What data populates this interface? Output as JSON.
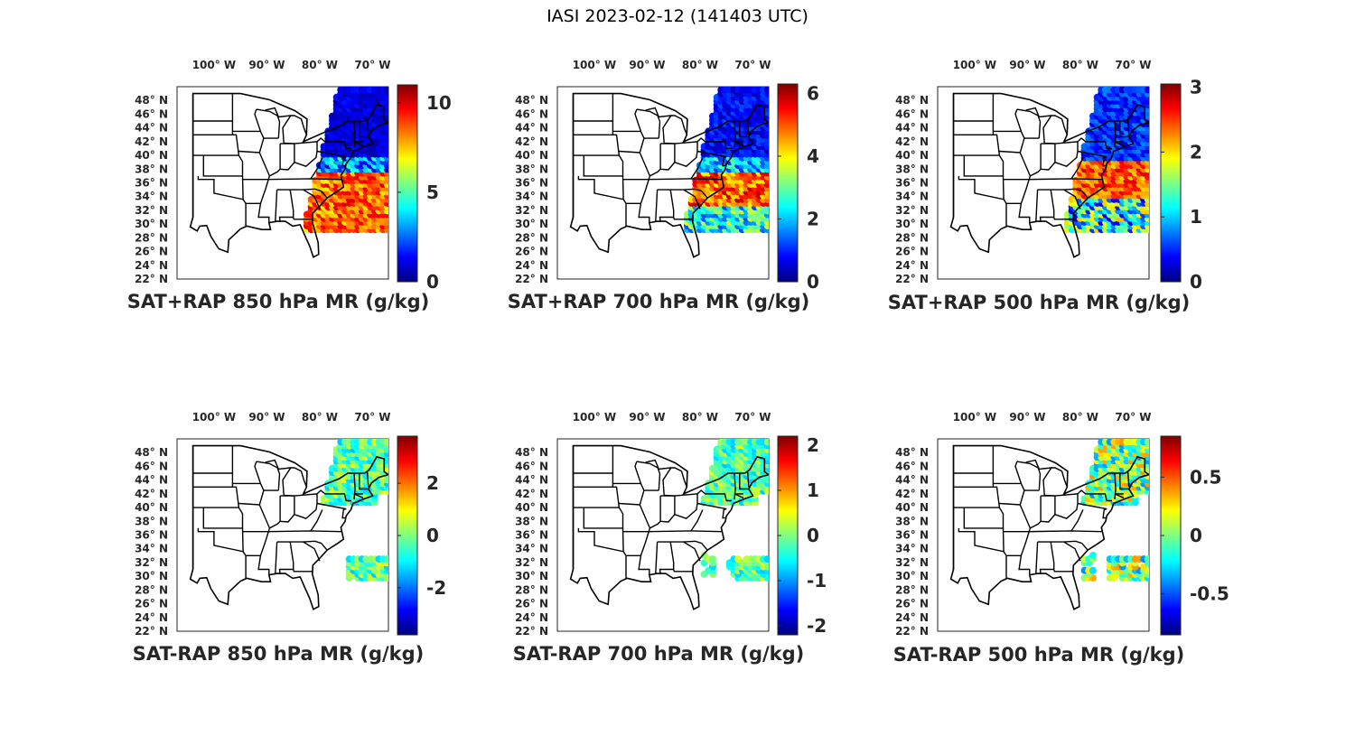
{
  "figure": {
    "title": "IASI 2023-02-12 (141403 UTC)"
  },
  "map_axes": {
    "lon_ticks": [
      {
        "value": -100,
        "label": "100° W"
      },
      {
        "value": -90,
        "label": "90° W"
      },
      {
        "value": -80,
        "label": "80° W"
      },
      {
        "value": -70,
        "label": "70° W"
      }
    ],
    "lat_ticks": [
      {
        "value": 48,
        "label": "48° N"
      },
      {
        "value": 46,
        "label": "46° N"
      },
      {
        "value": 44,
        "label": "44° N"
      },
      {
        "value": 42,
        "label": "42° N"
      },
      {
        "value": 40,
        "label": "40° N"
      },
      {
        "value": 38,
        "label": "38° N"
      },
      {
        "value": 36,
        "label": "36° N"
      },
      {
        "value": 34,
        "label": "34° N"
      },
      {
        "value": 32,
        "label": "32° N"
      },
      {
        "value": 30,
        "label": "30° N"
      },
      {
        "value": 28,
        "label": "28° N"
      },
      {
        "value": 26,
        "label": "26° N"
      },
      {
        "value": 24,
        "label": "24° N"
      },
      {
        "value": 22,
        "label": "22° N"
      }
    ],
    "lon_range": [
      -107,
      -67
    ],
    "lat_range": [
      22,
      50
    ]
  },
  "colormap": "jet",
  "panels": [
    {
      "title": "SAT+RAP 850 hPa MR (g/kg)",
      "clim": [
        0,
        11
      ],
      "ticks": [
        {
          "value": 0,
          "label": "0"
        },
        {
          "value": 5,
          "label": "5"
        },
        {
          "value": 10,
          "label": "10"
        }
      ]
    },
    {
      "title": "SAT+RAP 700 hPa MR (g/kg)",
      "clim": [
        0,
        6.3
      ],
      "ticks": [
        {
          "value": 0,
          "label": "0"
        },
        {
          "value": 2,
          "label": "2"
        },
        {
          "value": 4,
          "label": "4"
        },
        {
          "value": 6,
          "label": "6"
        }
      ]
    },
    {
      "title": "SAT+RAP 500 hPa MR (g/kg)",
      "clim": [
        0,
        3.05
      ],
      "ticks": [
        {
          "value": 0,
          "label": "0"
        },
        {
          "value": 1,
          "label": "1"
        },
        {
          "value": 2,
          "label": "2"
        },
        {
          "value": 3,
          "label": "3"
        }
      ]
    },
    {
      "title": "SAT-RAP 850 hPa MR (g/kg)",
      "clim": [
        -3.8,
        3.8
      ],
      "ticks": [
        {
          "value": -2,
          "label": "-2"
        },
        {
          "value": 0,
          "label": "0"
        },
        {
          "value": 2,
          "label": "2"
        }
      ]
    },
    {
      "title": "SAT-RAP 700 hPa MR (g/kg)",
      "clim": [
        -2.2,
        2.2
      ],
      "ticks": [
        {
          "value": -2,
          "label": "-2"
        },
        {
          "value": -1,
          "label": "-1"
        },
        {
          "value": 0,
          "label": "0"
        },
        {
          "value": 1,
          "label": "1"
        },
        {
          "value": 2,
          "label": "2"
        }
      ]
    },
    {
      "title": "SAT-RAP 500 hPa MR (g/kg)",
      "clim": [
        -0.85,
        0.85
      ],
      "ticks": [
        {
          "value": -0.5,
          "label": "-0.5"
        },
        {
          "value": 0,
          "label": "0"
        },
        {
          "value": 0.5,
          "label": "0.5"
        }
      ]
    }
  ]
}
